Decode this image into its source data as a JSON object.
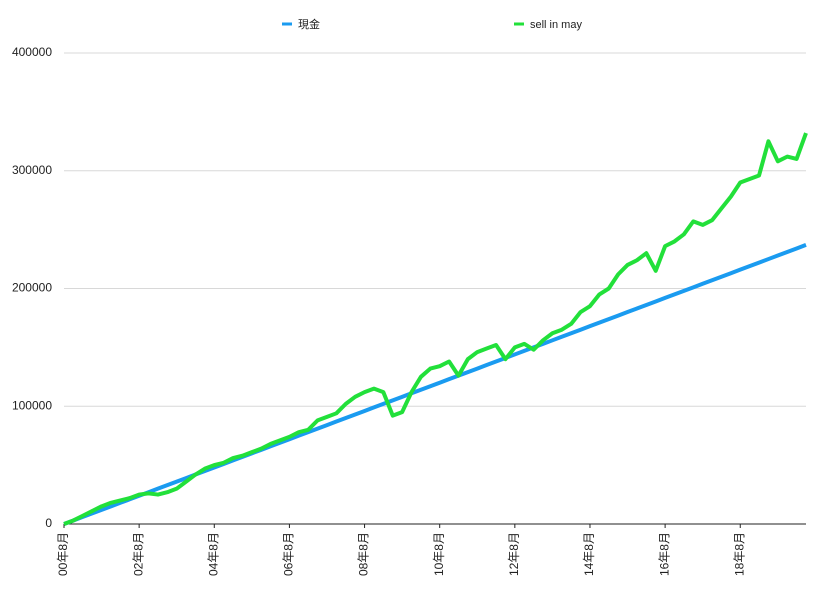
{
  "chart_data": {
    "type": "line",
    "x": [
      0,
      3,
      6,
      9,
      12,
      15,
      18,
      21,
      24,
      27,
      30,
      33,
      36,
      39,
      42,
      45,
      48,
      51,
      54,
      57,
      60,
      63,
      66,
      69,
      72,
      75,
      78,
      81,
      84,
      87,
      90,
      93,
      96,
      99,
      102,
      105,
      108,
      111,
      114,
      117,
      120,
      123,
      126,
      129,
      132,
      135,
      138,
      141,
      144,
      147,
      150,
      153,
      156,
      159,
      162,
      165,
      168,
      171,
      174,
      177,
      180,
      183,
      186,
      189,
      192,
      195,
      198,
      201,
      204,
      207,
      210,
      213,
      216,
      219,
      222,
      225,
      228,
      231,
      234,
      237
    ],
    "series": [
      {
        "name": "現金",
        "color": "#1a9bf0",
        "values": [
          0,
          3000,
          6000,
          9000,
          12000,
          15000,
          18000,
          21000,
          24000,
          27000,
          30000,
          33000,
          36000,
          39000,
          42000,
          45000,
          48000,
          51000,
          54000,
          57000,
          60000,
          63000,
          66000,
          69000,
          72000,
          75000,
          78000,
          81000,
          84000,
          87000,
          90000,
          93000,
          96000,
          99000,
          102000,
          105000,
          108000,
          111000,
          114000,
          117000,
          120000,
          123000,
          126000,
          129000,
          132000,
          135000,
          138000,
          141000,
          144000,
          147000,
          150000,
          153000,
          156000,
          159000,
          162000,
          165000,
          168000,
          171000,
          174000,
          177000,
          180000,
          183000,
          186000,
          189000,
          192000,
          195000,
          198000,
          201000,
          204000,
          207000,
          210000,
          213000,
          216000,
          219000,
          222000,
          225000,
          228000,
          231000,
          234000,
          237000
        ]
      },
      {
        "name": "sell in may",
        "color": "#22e03a",
        "values": [
          0,
          3000,
          7000,
          11000,
          15000,
          18000,
          20000,
          22000,
          25000,
          26000,
          25000,
          27000,
          30000,
          36000,
          42000,
          47000,
          50000,
          52000,
          56000,
          58000,
          61000,
          64000,
          68000,
          71000,
          74000,
          78000,
          80000,
          88000,
          91000,
          94000,
          102000,
          108000,
          112000,
          115000,
          112000,
          92000,
          95000,
          112000,
          125000,
          132000,
          134000,
          138000,
          126000,
          140000,
          146000,
          149000,
          152000,
          140000,
          150000,
          153000,
          148000,
          156000,
          162000,
          165000,
          170000,
          180000,
          185000,
          195000,
          200000,
          212000,
          220000,
          224000,
          230000,
          215000,
          236000,
          240000,
          246000,
          257000,
          254000,
          258000,
          268000,
          278000,
          290000,
          293000,
          296000,
          325000,
          308000,
          312000,
          310000,
          332000
        ]
      }
    ],
    "xlim": [
      0,
      237
    ],
    "xticks": [
      {
        "value": 0,
        "label": "00年8月"
      },
      {
        "value": 24,
        "label": "02年8月"
      },
      {
        "value": 48,
        "label": "04年8月"
      },
      {
        "value": 72,
        "label": "06年8月"
      },
      {
        "value": 96,
        "label": "08年8月"
      },
      {
        "value": 120,
        "label": "10年8月"
      },
      {
        "value": 144,
        "label": "12年8月"
      },
      {
        "value": 168,
        "label": "14年8月"
      },
      {
        "value": 192,
        "label": "16年8月"
      },
      {
        "value": 216,
        "label": "18年8月"
      }
    ],
    "ylim": [
      0,
      400000
    ],
    "yticks": [
      0,
      100000,
      200000,
      300000,
      400000
    ],
    "grid": true,
    "legend": "top"
  }
}
